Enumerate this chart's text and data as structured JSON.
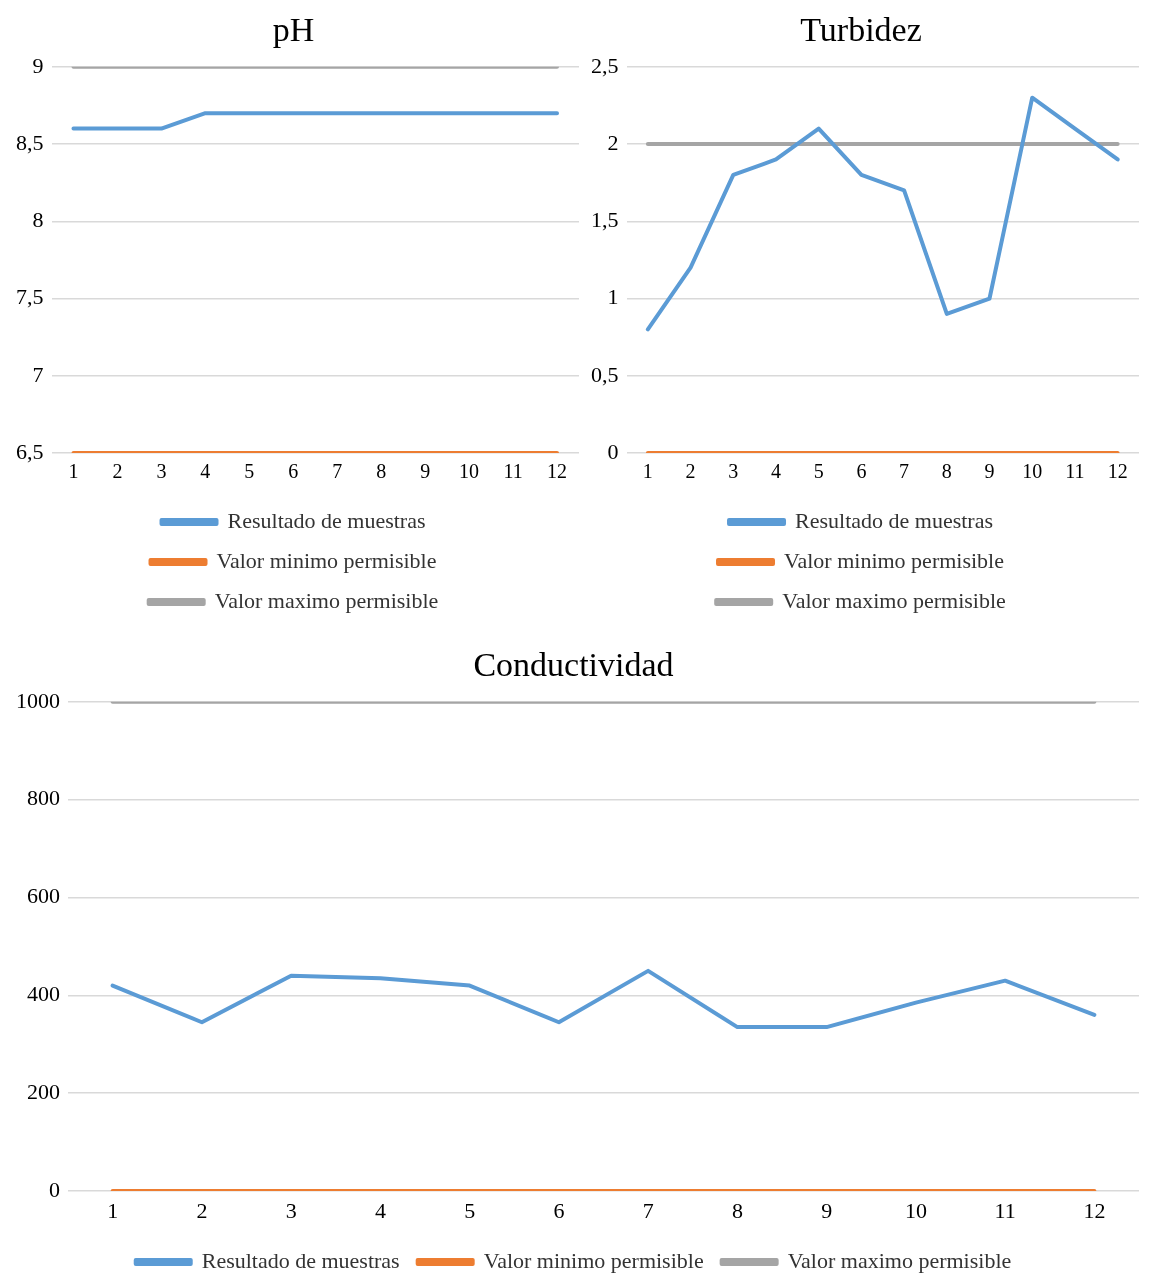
{
  "chart_data": [
    {
      "type": "line",
      "title": "pH",
      "categories": [
        "1",
        "2",
        "3",
        "4",
        "5",
        "6",
        "7",
        "8",
        "9",
        "10",
        "11",
        "12"
      ],
      "ylim": [
        6.5,
        9
      ],
      "yticks": [
        {
          "value": 6.5,
          "label": "6,5"
        },
        7,
        {
          "value": 7.5,
          "label": "7,5"
        },
        8,
        {
          "value": 8.5,
          "label": "8,5"
        },
        9
      ],
      "grid": "y",
      "legend": "bottom",
      "series": [
        {
          "name": "Resultado de muestras",
          "color": "#5b9bd5",
          "values": [
            8.6,
            8.6,
            8.6,
            8.7,
            8.7,
            8.7,
            8.7,
            8.7,
            8.7,
            8.7,
            8.7,
            8.7
          ]
        },
        {
          "name": "Valor minimo permisible",
          "color": "#ed7d31",
          "values": [
            6.5,
            6.5,
            6.5,
            6.5,
            6.5,
            6.5,
            6.5,
            6.5,
            6.5,
            6.5,
            6.5,
            6.5
          ]
        },
        {
          "name": "Valor maximo permisible",
          "color": "#a5a5a5",
          "values": [
            9,
            9,
            9,
            9,
            9,
            9,
            9,
            9,
            9,
            9,
            9,
            9
          ]
        }
      ]
    },
    {
      "type": "line",
      "title": "Turbidez",
      "categories": [
        "1",
        "2",
        "3",
        "4",
        "5",
        "6",
        "7",
        "8",
        "9",
        "10",
        "11",
        "12"
      ],
      "ylim": [
        0,
        2.5
      ],
      "yticks": [
        0,
        {
          "value": 0.5,
          "label": "0,5"
        },
        1,
        {
          "value": 1.5,
          "label": "1,5"
        },
        2,
        {
          "value": 2.5,
          "label": "2,5"
        }
      ],
      "grid": "y",
      "legend": "bottom",
      "series": [
        {
          "name": "Resultado de muestras",
          "color": "#5b9bd5",
          "values": [
            0.8,
            1.2,
            1.8,
            1.9,
            2.1,
            1.8,
            1.7,
            0.9,
            1.0,
            2.3,
            2.1,
            1.9
          ]
        },
        {
          "name": "Valor minimo permisible",
          "color": "#ed7d31",
          "values": [
            0,
            0,
            0,
            0,
            0,
            0,
            0,
            0,
            0,
            0,
            0,
            0
          ]
        },
        {
          "name": "Valor maximo permisible",
          "color": "#a5a5a5",
          "values": [
            2,
            2,
            2,
            2,
            2,
            2,
            2,
            2,
            2,
            2,
            2,
            2
          ]
        }
      ]
    },
    {
      "type": "line",
      "title": "Conductividad",
      "categories": [
        "1",
        "2",
        "3",
        "4",
        "5",
        "6",
        "7",
        "8",
        "9",
        "10",
        "11",
        "12"
      ],
      "ylim": [
        0,
        1000
      ],
      "yticks": [
        0,
        200,
        400,
        600,
        800,
        1000
      ],
      "grid": "y",
      "legend": "bottom",
      "series": [
        {
          "name": "Resultado de muestras",
          "color": "#5b9bd5",
          "values": [
            420,
            345,
            440,
            435,
            420,
            345,
            450,
            335,
            335,
            385,
            430,
            360
          ]
        },
        {
          "name": "Valor minimo permisible",
          "color": "#ed7d31",
          "values": [
            0,
            0,
            0,
            0,
            0,
            0,
            0,
            0,
            0,
            0,
            0,
            0
          ]
        },
        {
          "name": "Valor maximo permisible",
          "color": "#a5a5a5",
          "values": [
            1000,
            1000,
            1000,
            1000,
            1000,
            1000,
            1000,
            1000,
            1000,
            1000,
            1000,
            1000
          ]
        }
      ]
    }
  ]
}
